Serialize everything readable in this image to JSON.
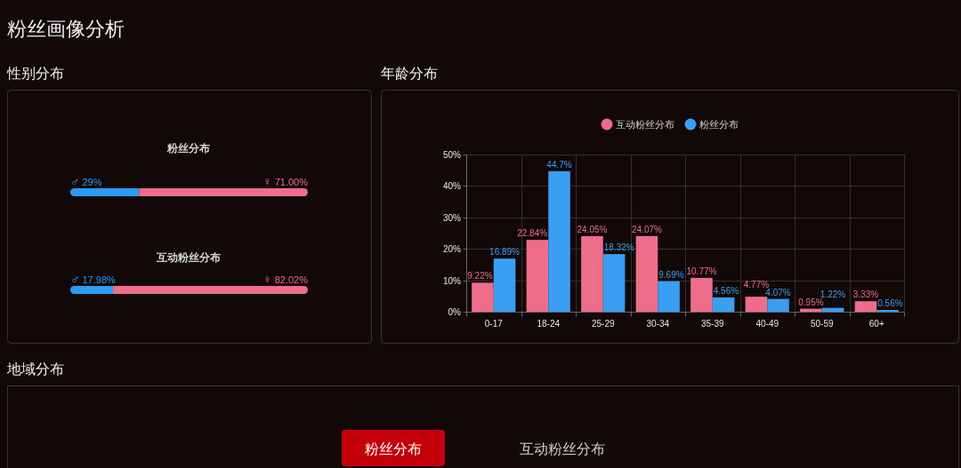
{
  "chart_data": [
    {
      "type": "other",
      "title": "粉丝画像分析"
    },
    {
      "type": "bar",
      "title": "性别分布",
      "orientation": "horizontal",
      "stacked": true,
      "categories": [
        "粉丝分布",
        "互动粉丝分布"
      ],
      "series": [
        {
          "name": "♂",
          "color": "#2d9bf4",
          "values": [
            29,
            17.98
          ],
          "value_labels": [
            "29%",
            "17.98%"
          ]
        },
        {
          "name": "♀",
          "color": "#ee6d8b",
          "values": [
            71,
            82.02
          ],
          "value_labels": [
            "71.00%",
            "82.02%"
          ]
        }
      ]
    },
    {
      "type": "bar",
      "title": "年龄分布",
      "categories": [
        "0-17",
        "18-24",
        "25-29",
        "30-34",
        "35-39",
        "40-49",
        "50-59",
        "60+"
      ],
      "series": [
        {
          "name": "互动粉丝分布",
          "color": "#ee6d8b",
          "values": [
            9.22,
            22.84,
            24.05,
            24.07,
            10.77,
            4.77,
            0.95,
            3.33
          ],
          "value_labels": [
            "9.22%",
            "22.84%",
            "24.05%",
            "24.07%",
            "10.77%",
            "4.77%",
            "0.95%",
            "3.33%"
          ]
        },
        {
          "name": "粉丝分布",
          "color": "#3a9ef2",
          "values": [
            16.89,
            44.7,
            18.32,
            9.69,
            4.56,
            4.07,
            1.22,
            0.56
          ],
          "value_labels": [
            "16.89%",
            "44.7%",
            "18.32%",
            "9.69%",
            "4.56%",
            "4.07%",
            "1.22%",
            "0.56%"
          ]
        }
      ],
      "ylim": [
        0,
        50
      ],
      "yticks": [
        {
          "value": 0,
          "label": "0%"
        },
        {
          "value": 10,
          "label": "10%"
        },
        {
          "value": 20,
          "label": "20%"
        },
        {
          "value": 30,
          "label": "30%"
        },
        {
          "value": 40,
          "label": "40%"
        },
        {
          "value": 50,
          "label": "50%"
        }
      ],
      "grid": true,
      "legend": "top"
    },
    {
      "type": "other",
      "title": "地域分布",
      "annotations": [
        "粉丝分布",
        "互动粉丝分布"
      ]
    }
  ]
}
